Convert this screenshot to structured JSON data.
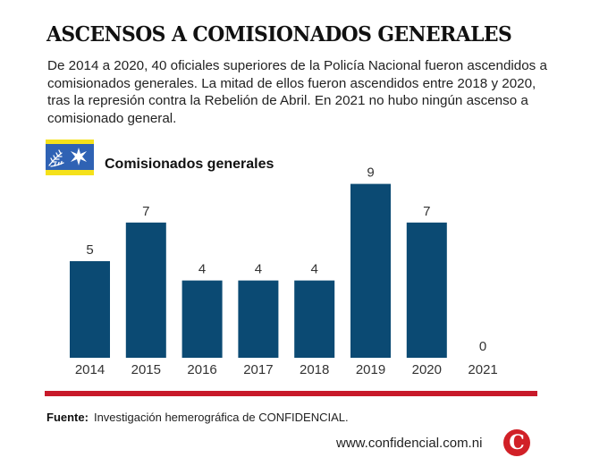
{
  "title": "ASCENSOS A COMISIONADOS GENERALES",
  "lead": "De 2014 a 2020, 40 oficiales superiores de la Policía Nacional fueron ascendidos a comisionados generales. La mitad de ellos fueron ascendidos entre 2018 y 2020, tras la represión contra la Rebelión de Abril. En 2021 no hubo ningún ascenso a comisionado general.",
  "badge_icon": "police-insignia-icon",
  "colors": {
    "bar": "#0b4a73",
    "accent_red": "#c8192a",
    "badge_blue": "#2f62b4",
    "badge_yellow": "#f5e11a"
  },
  "chart_data": {
    "type": "bar",
    "title": "Comisionados generales",
    "xlabel": "",
    "ylabel": "",
    "categories": [
      "2014",
      "2015",
      "2016",
      "2017",
      "2018",
      "2019",
      "2020",
      "2021"
    ],
    "values": [
      5,
      7,
      4,
      4,
      4,
      9,
      7,
      0
    ],
    "data_labels": [
      "5",
      "7",
      "4",
      "4",
      "4",
      "9",
      "7",
      "0"
    ],
    "ylim": [
      0,
      9
    ],
    "grid": false,
    "legend": "none"
  },
  "footer": {
    "source_label": "Fuente:",
    "source_text": "Investigación hemerográfica de CONFIDENCIAL.",
    "site": "www.confidencial.com.ni",
    "logo_letter": "C"
  }
}
